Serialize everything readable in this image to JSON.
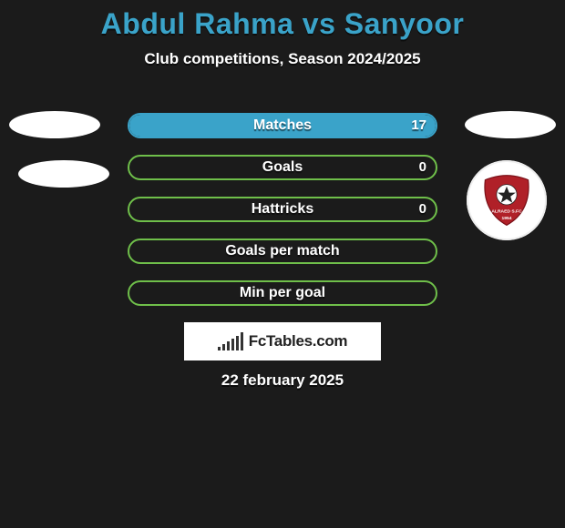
{
  "title": "Abdul Rahma vs Sanyoor",
  "subtitle": "Club competitions, Season 2024/2025",
  "date": "22 february 2025",
  "branding": "FcTables.com",
  "colors": {
    "background": "#1b1b1b",
    "title": "#3aa3c9",
    "text": "#ffffff",
    "bar_border": "#6fbf4a",
    "bar_fill": "#6fbf4a",
    "bar_fill_alt": "#3aa3c9",
    "logo_bar_bg": "#ffffff",
    "club_logo_red": "#b02028"
  },
  "left_player": {
    "name": "Abdul Rahma",
    "photo_placeholders": 2
  },
  "right_player": {
    "name": "Sanyoor",
    "photo_placeholders": 1,
    "club": "Alraed SFC",
    "club_year": "1954"
  },
  "stats": [
    {
      "label": "Matches",
      "value": "17",
      "fill_pct": 100,
      "fill_color": "#3aa3c9",
      "border_color": "#3aa3c9"
    },
    {
      "label": "Goals",
      "value": "0",
      "fill_pct": 0,
      "fill_color": "#6fbf4a",
      "border_color": "#6fbf4a"
    },
    {
      "label": "Hattricks",
      "value": "0",
      "fill_pct": 0,
      "fill_color": "#6fbf4a",
      "border_color": "#6fbf4a"
    },
    {
      "label": "Goals per match",
      "value": "",
      "fill_pct": 0,
      "fill_color": "#6fbf4a",
      "border_color": "#6fbf4a"
    },
    {
      "label": "Min per goal",
      "value": "",
      "fill_pct": 0,
      "fill_color": "#6fbf4a",
      "border_color": "#6fbf4a"
    }
  ],
  "mini_bar_heights": [
    4,
    7,
    10,
    13,
    16,
    20
  ]
}
